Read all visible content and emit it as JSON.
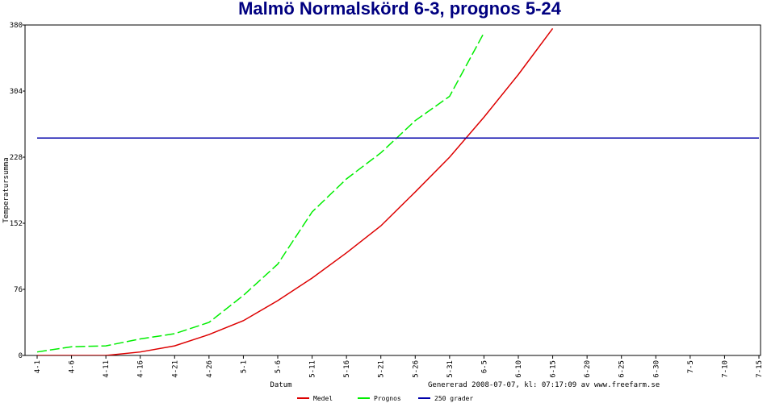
{
  "chart_data": {
    "type": "line",
    "title": "Malmö Normalskörd 6-3, prognos 5-24",
    "y_label": "Temperatursumma",
    "x_label": "Datum",
    "footer": "Genererad 2008-07-07, kl: 07:17:09 av www.freefarm.se",
    "categories": [
      "4-1",
      "4-6",
      "4-11",
      "4-16",
      "4-21",
      "4-26",
      "5-1",
      "5-6",
      "5-11",
      "5-16",
      "5-21",
      "5-26",
      "5-31",
      "6-5",
      "6-10",
      "6-15",
      "6-20",
      "6-25",
      "6-30",
      "7-5",
      "7-10",
      "7-15"
    ],
    "series": [
      {
        "name": "Medel",
        "color": "#dd0000",
        "dash": false,
        "values": [
          0,
          0,
          0,
          4,
          11,
          24,
          40,
          63,
          89,
          118,
          149,
          188,
          228,
          274,
          323,
          376,
          null,
          null,
          null,
          null,
          null,
          null
        ]
      },
      {
        "name": "Prognos",
        "color": "#00ee00",
        "dash": true,
        "values": [
          4,
          10,
          11,
          19,
          25,
          38,
          69,
          105,
          165,
          203,
          233,
          270,
          298,
          371,
          null,
          null,
          null,
          null,
          null,
          null,
          null,
          null
        ]
      },
      {
        "name": "250 grader",
        "color": "#0000aa",
        "dash": false,
        "values": [
          250,
          250,
          250,
          250,
          250,
          250,
          250,
          250,
          250,
          250,
          250,
          250,
          250,
          250,
          250,
          250,
          250,
          250,
          250,
          250,
          250,
          250
        ]
      }
    ],
    "ylim": [
      0,
      380
    ],
    "yticks": [
      0,
      76,
      152,
      228,
      304,
      380
    ],
    "grid": false
  }
}
